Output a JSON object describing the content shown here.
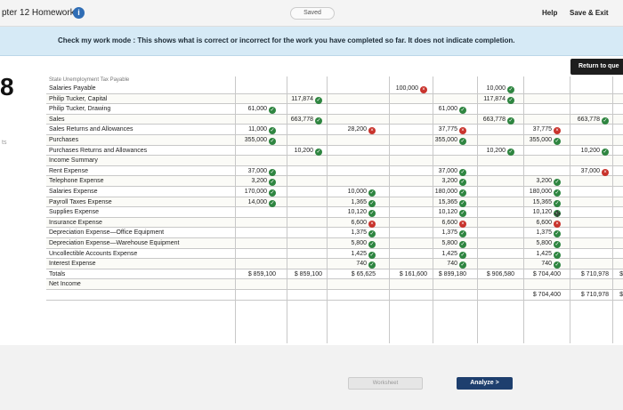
{
  "header": {
    "title": "pter 12 Homework",
    "saved_label": "Saved",
    "help_label": "Help",
    "save_exit_label": "Save & Exit"
  },
  "banner": {
    "text": "Check my work mode : This shows what is correct or incorrect for the work you have completed so far. It does not indicate completion."
  },
  "question": {
    "number": "8",
    "side_mark": "ts",
    "return_label": "Return to que"
  },
  "worksheet": {
    "header_scrawl": "State Unemployment Tax Payable",
    "rows": [
      {
        "account": "Salaries Payable",
        "tb_cr": "",
        "adj_cr": "100,000",
        "adj_cr_status": "bad",
        "atb_cr": "10,000",
        "atb_cr_status": "ok"
      },
      {
        "account": "Philip Tucker, Capital",
        "tb_cr": "117,874",
        "tb_cr_status": "ok",
        "atb_cr": "117,874",
        "atb_cr_status": "ok"
      },
      {
        "account": "Philip Tucker, Drawing",
        "tb_dr": "61,000",
        "tb_dr_status": "ok",
        "atb_dr": "61,000",
        "atb_dr_status": "ok"
      },
      {
        "account": "Sales",
        "tb_cr": "663,778",
        "tb_cr_status": "ok",
        "atb_cr": "663,778",
        "atb_cr_status": "ok",
        "is_cr": "663,778",
        "is_cr_status": "ok"
      },
      {
        "account": "Sales Returns and Allowances",
        "tb_dr": "11,000",
        "tb_dr_status": "ok",
        "adj_dr": "28,200",
        "adj_dr_status": "bad",
        "atb_dr": "37,775",
        "atb_dr_status": "bad",
        "is_dr": "37,775",
        "is_dr_status": "bad"
      },
      {
        "account": "Purchases",
        "tb_dr": "355,000",
        "tb_dr_status": "ok",
        "atb_dr": "355,000",
        "atb_dr_status": "ok",
        "is_dr": "355,000",
        "is_dr_status": "ok"
      },
      {
        "account": "Purchases Returns and Allowances",
        "tb_cr": "10,200",
        "tb_cr_status": "ok",
        "atb_cr": "10,200",
        "atb_cr_status": "ok",
        "is_cr": "10,200",
        "is_cr_status": "ok"
      },
      {
        "account": "Income Summary"
      },
      {
        "account": "Rent Expense",
        "tb_dr": "37,000",
        "tb_dr_status": "ok",
        "atb_dr": "37,000",
        "atb_dr_status": "ok",
        "is_cr": "37,000",
        "is_cr_status": "bad"
      },
      {
        "account": "Telephone Expense",
        "tb_dr": "3,200",
        "tb_dr_status": "ok",
        "atb_dr": "3,200",
        "atb_dr_status": "ok",
        "is_dr": "3,200",
        "is_dr_status": "ok"
      },
      {
        "account": "Salaries Expense",
        "tb_dr": "170,000",
        "tb_dr_status": "ok",
        "adj_dr": "10,000",
        "adj_dr_status": "ok",
        "atb_dr": "180,000",
        "atb_dr_status": "ok",
        "is_dr": "180,000",
        "is_dr_status": "ok"
      },
      {
        "account": "Payroll Taxes Expense",
        "tb_dr": "14,000",
        "tb_dr_status": "ok",
        "adj_dr": "1,365",
        "adj_dr_status": "ok",
        "atb_dr": "15,365",
        "atb_dr_status": "ok",
        "is_dr": "15,365",
        "is_dr_status": "ok"
      },
      {
        "account": "Supplies Expense",
        "adj_dr": "10,120",
        "adj_dr_status": "ok",
        "atb_dr": "10,120",
        "atb_dr_status": "ok",
        "is_dr": "10,120",
        "is_dr_status": "ok"
      },
      {
        "account": "Insurance Expense",
        "adj_dr": "6,600",
        "adj_dr_status": "bad",
        "atb_dr": "6,600",
        "atb_dr_status": "bad",
        "is_dr": "6,600",
        "is_dr_status": "bad"
      },
      {
        "account": "Depreciation Expense—Office Equipment",
        "adj_dr": "1,375",
        "adj_dr_status": "ok",
        "atb_dr": "1,375",
        "atb_dr_status": "ok",
        "is_dr": "1,375",
        "is_dr_status": "ok"
      },
      {
        "account": "Depreciation Expense—Warehouse Equipment",
        "adj_dr": "5,800",
        "adj_dr_status": "ok",
        "atb_dr": "5,800",
        "atb_dr_status": "ok",
        "is_dr": "5,800",
        "is_dr_status": "ok"
      },
      {
        "account": "Uncollectible Accounts Expense",
        "adj_dr": "1,425",
        "adj_dr_status": "ok",
        "atb_dr": "1,425",
        "atb_dr_status": "ok",
        "is_dr": "1,425",
        "is_dr_status": "ok"
      },
      {
        "account": "Interest Expense",
        "adj_dr": "740",
        "adj_dr_status": "ok",
        "atb_dr": "740",
        "atb_dr_status": "ok",
        "is_dr": "740",
        "is_dr_status": "ok"
      },
      {
        "account": "Totals",
        "tb_dr": "$ 859,100",
        "tb_cr": "$ 859,100",
        "adj_dr": "$ 65,625",
        "adj_cr": "$ 161,600",
        "atb_dr": "$ 899,180",
        "atb_cr": "$ 906,580",
        "is_dr": "$ 704,400",
        "is_cr": "$ 710,978",
        "bs_dr": "$"
      },
      {
        "account": "Net Income"
      },
      {
        "account": "",
        "is_dr": "$ 704,400",
        "is_cr": "$ 710,978",
        "bs_dr": "$"
      }
    ]
  },
  "nav": {
    "prev_label": "Worksheet",
    "next_label": "Analyze  >"
  }
}
